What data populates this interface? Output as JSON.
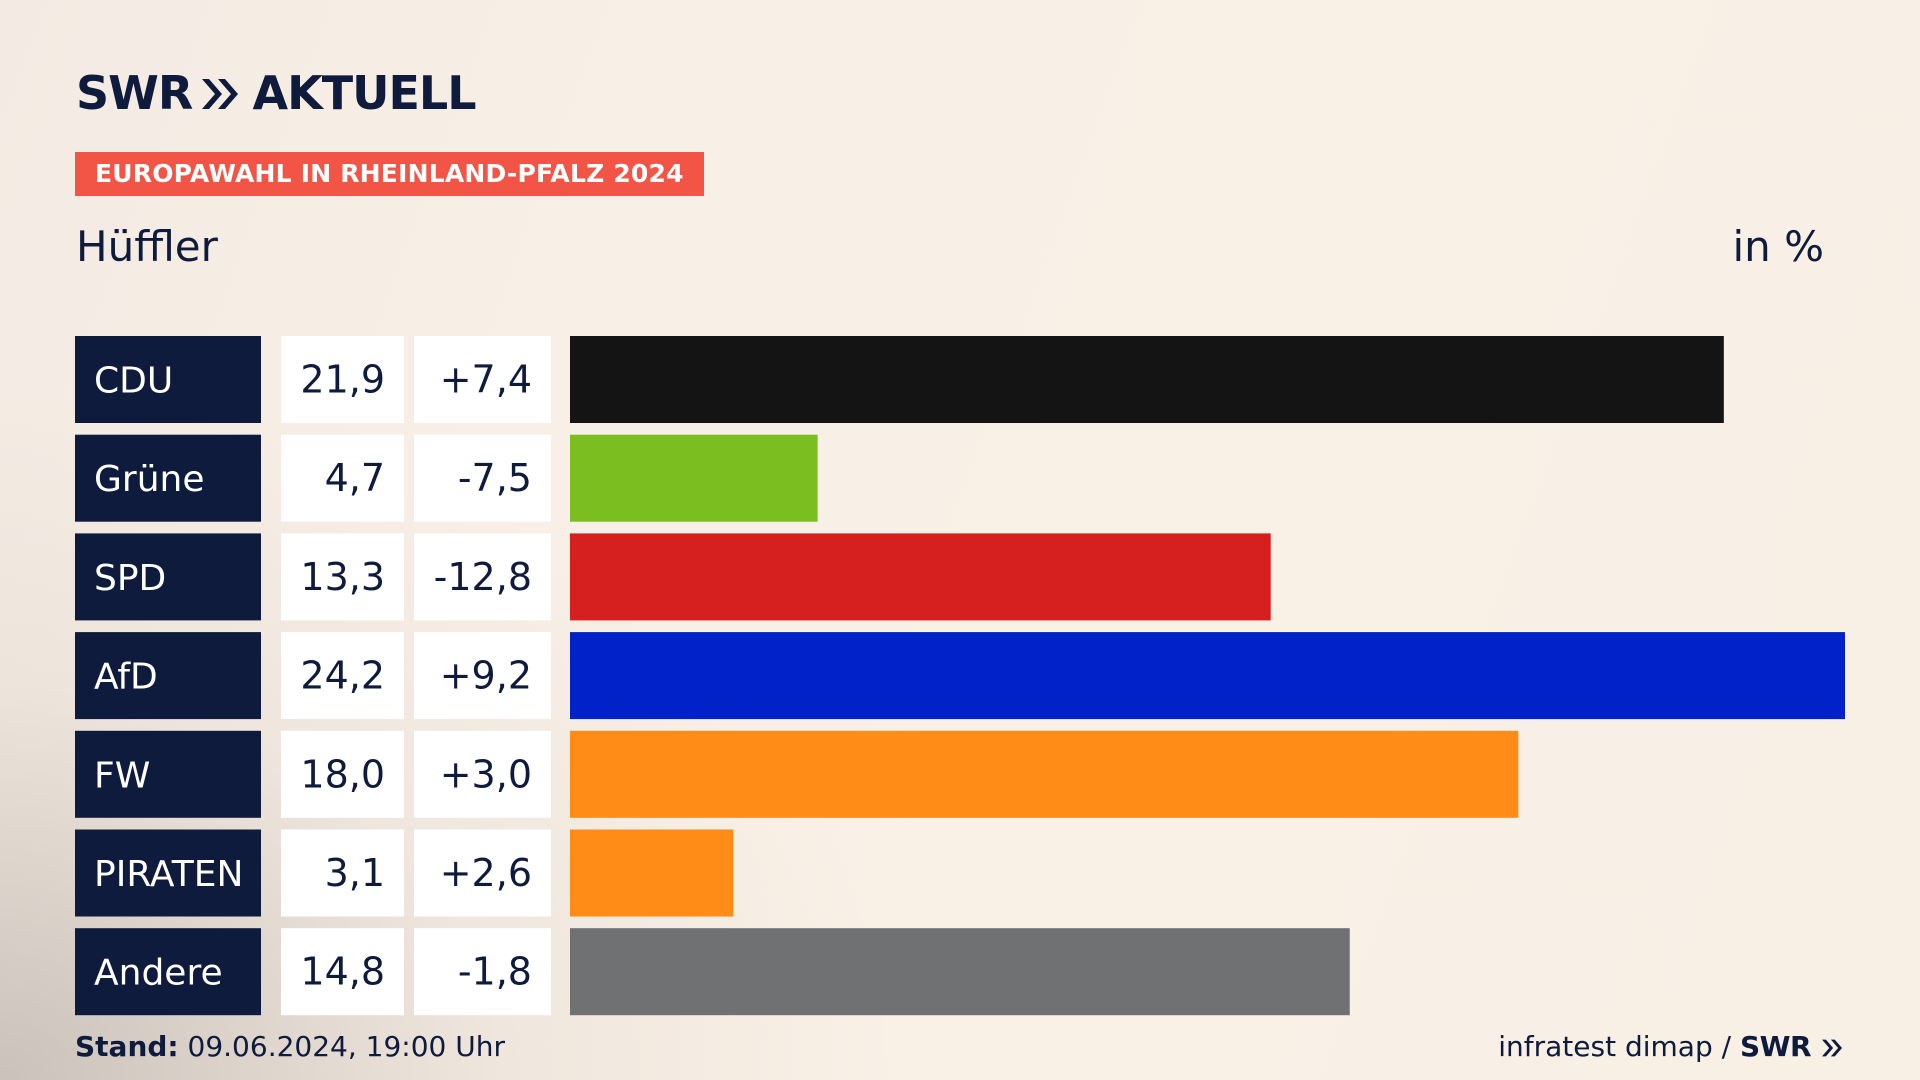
{
  "brand": {
    "name": "SWR",
    "section": "AKTUELL"
  },
  "badge": "EUROPAWAHL IN RHEINLAND-PFALZ 2024",
  "subtitle": "Hüffler",
  "unit": "in %",
  "footer": {
    "stand_label": "Stand:",
    "stand_value": "09.06.2024, 19:00 Uhr",
    "source": "infratest dimap /",
    "source_brand": "SWR"
  },
  "colors": {
    "label_bg": "#0f1b3d",
    "value_bg": "#ffffff"
  },
  "chart_data": {
    "type": "bar",
    "orientation": "horizontal",
    "title": "EUROPAWAHL IN RHEINLAND-PFALZ 2024",
    "subtitle": "Hüffler",
    "unit": "in %",
    "categories": [
      "CDU",
      "Grüne",
      "SPD",
      "AfD",
      "FW",
      "PIRATEN",
      "Andere"
    ],
    "values": [
      21.9,
      4.7,
      13.3,
      24.2,
      18.0,
      3.1,
      14.8
    ],
    "value_labels": [
      "21,9",
      "4,7",
      "13,3",
      "24,2",
      "18,0",
      "3,1",
      "14,8"
    ],
    "changes": [
      7.4,
      -7.5,
      -12.8,
      9.2,
      3.0,
      2.6,
      -1.8
    ],
    "change_labels": [
      "+7,4",
      "-7,5",
      "-12,8",
      "+9,2",
      "+3,0",
      "+2,6",
      "-1,8"
    ],
    "bar_colors": [
      "#141414",
      "#7abf1f",
      "#d6201f",
      "#0022c8",
      "#ff8c17",
      "#ff8c17",
      "#707173"
    ],
    "xlim": [
      0,
      24.2
    ]
  }
}
